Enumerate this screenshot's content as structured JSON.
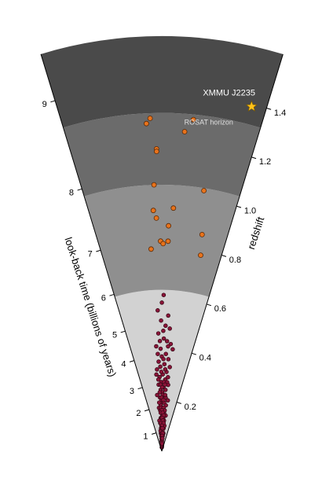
{
  "chart_data": {
    "type": "scatter",
    "title": "",
    "left_axis": {
      "label": "look-back time (billions of years)",
      "ticks": [
        1,
        2,
        3,
        4,
        5,
        6,
        7,
        8,
        9
      ]
    },
    "right_axis": {
      "label": "redshift",
      "ticks": [
        0.2,
        0.4,
        0.6,
        0.8,
        1.0,
        1.2,
        1.4
      ],
      "tick_labels": [
        "0.2",
        "0.4",
        "0.6",
        "0.8",
        "1.0",
        "1.2",
        "1.4"
      ]
    },
    "bands": [
      {
        "from": 0,
        "to": 0.63,
        "color": "#d2d2d2"
      },
      {
        "from": 0.63,
        "to": 1.04,
        "color": "#8f8f8f"
      },
      {
        "from": 1.04,
        "to": 1.32,
        "color": "#6b6b6b"
      },
      {
        "from": 1.32,
        "to": 1.62,
        "color": "#4a4a4a"
      }
    ],
    "labels": {
      "rosat": "ROSAT horizon",
      "xmmu": "XMMU J2235"
    },
    "highlight": {
      "name": "XMMU J2235",
      "z": 1.39,
      "color": "#ffc21a"
    },
    "distant_clusters": [
      [
        0.66,
        1.3
      ],
      [
        0.44,
        1.3
      ],
      [
        0.42,
        1.28
      ],
      [
        0.47,
        1.18
      ],
      [
        0.62,
        1.25
      ],
      [
        0.47,
        1.17
      ],
      [
        0.45,
        1.04
      ],
      [
        0.77,
        1.03
      ],
      [
        0.44,
        0.94
      ],
      [
        0.46,
        0.91
      ],
      [
        0.58,
        0.95
      ],
      [
        0.55,
        0.88
      ],
      [
        0.81,
        0.86
      ],
      [
        0.49,
        0.82
      ],
      [
        0.51,
        0.81
      ],
      [
        0.55,
        0.82
      ],
      [
        0.83,
        0.78
      ],
      [
        0.41,
        0.79
      ]
    ],
    "nearby_clusters": [
      [
        0.5,
        0.58
      ],
      [
        0.52,
        0.61
      ],
      [
        0.49,
        0.51
      ],
      [
        0.55,
        0.49
      ],
      [
        0.61,
        0.48
      ],
      [
        0.45,
        0.46
      ],
      [
        0.53,
        0.44
      ],
      [
        0.58,
        0.43
      ],
      [
        0.64,
        0.42
      ],
      [
        0.68,
        0.4
      ],
      [
        0.41,
        0.41
      ],
      [
        0.48,
        0.4
      ],
      [
        0.57,
        0.38
      ],
      [
        0.5,
        0.37
      ],
      [
        0.62,
        0.36
      ],
      [
        0.44,
        0.35
      ],
      [
        0.55,
        0.34
      ],
      [
        0.47,
        0.33
      ],
      [
        0.66,
        0.33
      ],
      [
        0.4,
        0.32
      ],
      [
        0.6,
        0.31
      ],
      [
        0.52,
        0.3
      ],
      [
        0.45,
        0.29
      ],
      [
        0.58,
        0.28
      ],
      [
        0.49,
        0.27
      ],
      [
        0.63,
        0.27
      ],
      [
        0.42,
        0.26
      ],
      [
        0.54,
        0.25
      ],
      [
        0.47,
        0.24
      ],
      [
        0.6,
        0.24
      ],
      [
        0.51,
        0.23
      ],
      [
        0.56,
        0.22
      ],
      [
        0.44,
        0.21
      ],
      [
        0.62,
        0.21
      ],
      [
        0.49,
        0.2
      ],
      [
        0.53,
        0.19
      ],
      [
        0.58,
        0.19
      ],
      [
        0.46,
        0.18
      ],
      [
        0.65,
        0.18
      ],
      [
        0.51,
        0.17
      ],
      [
        0.43,
        0.16
      ],
      [
        0.55,
        0.16
      ],
      [
        0.6,
        0.15
      ],
      [
        0.48,
        0.15
      ],
      [
        0.53,
        0.14
      ],
      [
        0.45,
        0.13
      ],
      [
        0.57,
        0.13
      ],
      [
        0.62,
        0.12
      ],
      [
        0.5,
        0.12
      ],
      [
        0.41,
        0.11
      ],
      [
        0.55,
        0.11
      ],
      [
        0.48,
        0.1
      ],
      [
        0.59,
        0.1
      ],
      [
        0.52,
        0.09
      ],
      [
        0.45,
        0.09
      ],
      [
        0.63,
        0.09
      ],
      [
        0.5,
        0.08
      ],
      [
        0.56,
        0.08
      ],
      [
        0.42,
        0.07
      ],
      [
        0.53,
        0.07
      ],
      [
        0.48,
        0.06
      ],
      [
        0.6,
        0.06
      ],
      [
        0.51,
        0.05
      ],
      [
        0.55,
        0.05
      ],
      [
        0.46,
        0.04
      ],
      [
        0.52,
        0.04
      ],
      [
        0.58,
        0.03
      ],
      [
        0.49,
        0.03
      ],
      [
        0.54,
        0.02
      ],
      [
        0.51,
        0.015
      ],
      [
        0.38,
        0.3
      ],
      [
        0.66,
        0.26
      ],
      [
        0.36,
        0.22
      ],
      [
        0.7,
        0.2
      ],
      [
        0.39,
        0.17
      ],
      [
        0.68,
        0.14
      ],
      [
        0.37,
        0.12
      ],
      [
        0.67,
        0.1
      ],
      [
        0.4,
        0.08
      ],
      [
        0.65,
        0.07
      ],
      [
        0.45,
        0.55
      ],
      [
        0.58,
        0.53
      ],
      [
        0.52,
        0.47
      ],
      [
        0.47,
        0.43
      ],
      [
        0.6,
        0.41
      ],
      [
        0.43,
        0.38
      ],
      [
        0.53,
        0.36
      ],
      [
        0.57,
        0.32
      ],
      [
        0.49,
        0.31
      ],
      [
        0.64,
        0.29
      ],
      [
        0.42,
        0.28
      ],
      [
        0.55,
        0.27
      ],
      [
        0.47,
        0.26
      ],
      [
        0.51,
        0.25
      ],
      [
        0.58,
        0.26
      ],
      [
        0.44,
        0.23
      ],
      [
        0.53,
        0.22
      ],
      [
        0.6,
        0.22
      ],
      [
        0.49,
        0.21
      ],
      [
        0.55,
        0.2
      ],
      [
        0.41,
        0.19
      ],
      [
        0.47,
        0.17
      ],
      [
        0.57,
        0.17
      ],
      [
        0.62,
        0.16
      ],
      [
        0.5,
        0.16
      ],
      [
        0.45,
        0.15
      ],
      [
        0.54,
        0.15
      ],
      [
        0.59,
        0.14
      ],
      [
        0.48,
        0.13
      ],
      [
        0.52,
        0.13
      ],
      [
        0.56,
        0.12
      ],
      [
        0.44,
        0.11
      ],
      [
        0.61,
        0.11
      ],
      [
        0.51,
        0.1
      ],
      [
        0.47,
        0.09
      ],
      [
        0.55,
        0.09
      ],
      [
        0.5,
        0.07
      ],
      [
        0.58,
        0.07
      ],
      [
        0.46,
        0.06
      ],
      [
        0.53,
        0.06
      ],
      [
        0.49,
        0.05
      ],
      [
        0.57,
        0.05
      ],
      [
        0.52,
        0.03
      ],
      [
        0.5,
        0.025
      ],
      [
        0.53,
        0.03
      ]
    ],
    "colors": {
      "distant_fill": "#e8731c",
      "distant_stroke": "#5a2a08",
      "nearby_fill": "#8a1438",
      "nearby_stroke": "#2a0510",
      "axis": "#000000"
    }
  }
}
